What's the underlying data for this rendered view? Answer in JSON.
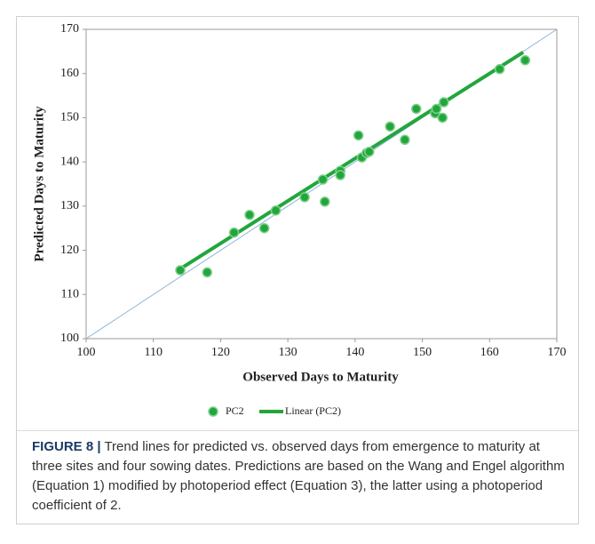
{
  "chart_data": {
    "type": "scatter",
    "xlabel": "Observed Days to Maturity",
    "ylabel": "Predicted Days to Maturity",
    "xlim": [
      100,
      170
    ],
    "ylim": [
      100,
      170
    ],
    "xticks": [
      100,
      110,
      120,
      130,
      140,
      150,
      160,
      170
    ],
    "yticks": [
      100,
      110,
      120,
      130,
      140,
      150,
      160,
      170
    ],
    "series": [
      {
        "name": "PC2",
        "color": "#22a63c",
        "x": [
          114,
          118,
          122,
          124.3,
          126.5,
          128.2,
          132.5,
          135.2,
          135.5,
          137.8,
          137.8,
          140.5,
          141,
          141.7,
          142.1,
          145.2,
          147.4,
          149.1,
          151.9,
          152.1,
          153,
          153.2,
          161.5,
          165.3
        ],
        "values": [
          115.5,
          115,
          124,
          128,
          125,
          129,
          132,
          136,
          131,
          138,
          137,
          146,
          141,
          142,
          142.3,
          148,
          145,
          152,
          151,
          152,
          150,
          153.5,
          161,
          163
        ]
      },
      {
        "name": "Linear (PC2)",
        "color": "#22a63c",
        "x": [
          114,
          165
        ],
        "values": [
          115.8,
          164.8
        ]
      }
    ]
  },
  "caption": {
    "label": "FIGURE 8 |",
    "text": "Trend lines for predicted vs. observed days from emergence to maturity at three sites and four sowing dates. Predictions are based on the Wang and Engel algorithm (Equation 1) modified by photoperiod effect (Equation 3), the latter using a photoperiod coefficient of 2."
  }
}
